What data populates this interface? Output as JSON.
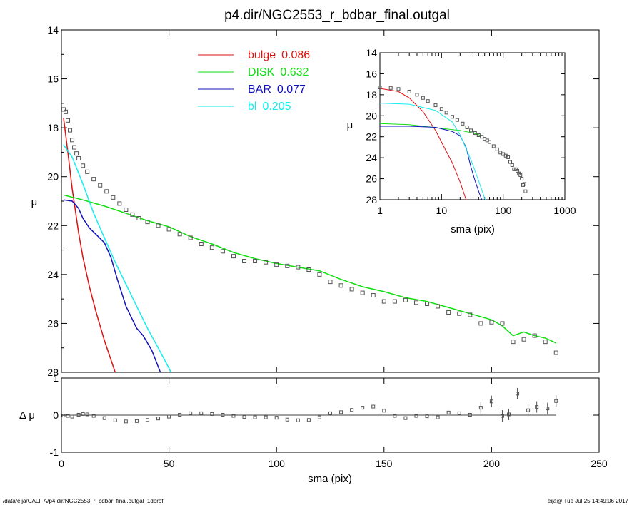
{
  "title": "p4.dir/NGC2553_r_bdbar_final.outgal",
  "footer_left": "/data/eija/CALIFA/p4.dir/NGC2553_r_bdbar_final.outgal_1dprof",
  "footer_right": "eija@  Tue Jul 25 14:49:06 2017",
  "colors": {
    "bulge": "#dd1111",
    "disk": "#11dd11",
    "bar": "#1111bb",
    "bl": "#11eeee",
    "data": "#555555"
  },
  "legend": [
    {
      "key": "bulge",
      "label": "bulge",
      "value": "0.086"
    },
    {
      "key": "disk",
      "label": "DISK",
      "value": "0.632"
    },
    {
      "key": "bar",
      "label": "BAR",
      "value": "0.077"
    },
    {
      "key": "bl",
      "label": "bl",
      "value": "0.205"
    }
  ],
  "chart_data": [
    {
      "panel": "main",
      "type": "line",
      "title": "p4.dir/NGC2553_r_bdbar_final.outgal",
      "xlabel": "sma (pix)",
      "ylabel": "μ",
      "xlim": [
        0,
        250
      ],
      "ylim": [
        28,
        14
      ],
      "y_inverted": true,
      "xticks": [
        0,
        50,
        100,
        150,
        200,
        250
      ],
      "yticks": [
        14,
        16,
        18,
        20,
        22,
        24,
        26,
        28
      ],
      "series": [
        {
          "name": "bulge",
          "key": "bulge",
          "style": "line",
          "points": [
            [
              1,
              17.6
            ],
            [
              3,
              19.0
            ],
            [
              5,
              20.5
            ],
            [
              8,
              22.3
            ],
            [
              10,
              23.3
            ],
            [
              13,
              24.5
            ],
            [
              16,
              25.5
            ],
            [
              20,
              26.7
            ],
            [
              25,
              28.0
            ]
          ]
        },
        {
          "name": "DISK",
          "key": "disk",
          "style": "line",
          "points": [
            [
              1,
              20.75
            ],
            [
              10,
              20.95
            ],
            [
              20,
              21.2
            ],
            [
              30,
              21.5
            ],
            [
              40,
              21.8
            ],
            [
              50,
              22.05
            ],
            [
              60,
              22.45
            ],
            [
              70,
              22.75
            ],
            [
              80,
              23.1
            ],
            [
              90,
              23.35
            ],
            [
              100,
              23.55
            ],
            [
              110,
              23.7
            ],
            [
              120,
              23.85
            ],
            [
              130,
              24.2
            ],
            [
              140,
              24.5
            ],
            [
              150,
              24.7
            ],
            [
              160,
              24.95
            ],
            [
              170,
              25.1
            ],
            [
              180,
              25.35
            ],
            [
              190,
              25.6
            ],
            [
              200,
              25.85
            ],
            [
              205,
              26.1
            ],
            [
              210,
              26.5
            ],
            [
              215,
              26.35
            ],
            [
              220,
              26.5
            ],
            [
              225,
              26.6
            ],
            [
              230,
              26.8
            ]
          ]
        },
        {
          "name": "BAR",
          "key": "bar",
          "style": "line",
          "points": [
            [
              1,
              20.95
            ],
            [
              5,
              21.0
            ],
            [
              8,
              21.3
            ],
            [
              10,
              21.7
            ],
            [
              13,
              22.1
            ],
            [
              16,
              22.35
            ],
            [
              20,
              22.7
            ],
            [
              23,
              23.3
            ],
            [
              26,
              24.2
            ],
            [
              30,
              25.3
            ],
            [
              35,
              26.2
            ],
            [
              38,
              26.5
            ],
            [
              42,
              27.1
            ],
            [
              46,
              28.0
            ]
          ]
        },
        {
          "name": "bl",
          "key": "bl",
          "style": "line",
          "points": [
            [
              1,
              18.7
            ],
            [
              5,
              19.2
            ],
            [
              10,
              20.3
            ],
            [
              15,
              21.5
            ],
            [
              20,
              22.5
            ],
            [
              25,
              23.5
            ],
            [
              30,
              24.4
            ],
            [
              35,
              25.3
            ],
            [
              40,
              26.2
            ],
            [
              45,
              27.0
            ],
            [
              51,
              28.0
            ]
          ]
        },
        {
          "name": "data",
          "key": "data",
          "style": "points",
          "points": [
            [
              1,
              17.25
            ],
            [
              2,
              17.35
            ],
            [
              3,
              17.7
            ],
            [
              4,
              18.1
            ],
            [
              5,
              18.5
            ],
            [
              6,
              18.8
            ],
            [
              7,
              19.05
            ],
            [
              8,
              19.25
            ],
            [
              10,
              19.55
            ],
            [
              12,
              19.8
            ],
            [
              15,
              20.1
            ],
            [
              18,
              20.35
            ],
            [
              21,
              20.6
            ],
            [
              24,
              20.85
            ],
            [
              27,
              21.1
            ],
            [
              30,
              21.35
            ],
            [
              33,
              21.55
            ],
            [
              36,
              21.7
            ],
            [
              40,
              21.85
            ],
            [
              45,
              22.0
            ],
            [
              50,
              22.15
            ],
            [
              55,
              22.35
            ],
            [
              60,
              22.5
            ],
            [
              65,
              22.75
            ],
            [
              70,
              22.9
            ],
            [
              75,
              23.05
            ],
            [
              80,
              23.25
            ],
            [
              85,
              23.45
            ],
            [
              90,
              23.45
            ],
            [
              95,
              23.5
            ],
            [
              100,
              23.6
            ],
            [
              105,
              23.65
            ],
            [
              110,
              23.7
            ],
            [
              115,
              23.8
            ],
            [
              120,
              24.0
            ],
            [
              125,
              24.3
            ],
            [
              130,
              24.45
            ],
            [
              135,
              24.6
            ],
            [
              140,
              24.75
            ],
            [
              145,
              24.85
            ],
            [
              150,
              25.1
            ],
            [
              155,
              25.1
            ],
            [
              160,
              25.05
            ],
            [
              165,
              25.15
            ],
            [
              170,
              25.2
            ],
            [
              175,
              25.3
            ],
            [
              180,
              25.55
            ],
            [
              185,
              25.6
            ],
            [
              190,
              25.65
            ],
            [
              195,
              26.0
            ],
            [
              200,
              25.95
            ],
            [
              205,
              26.0
            ],
            [
              210,
              26.75
            ],
            [
              215,
              26.65
            ],
            [
              220,
              26.5
            ],
            [
              225,
              26.75
            ],
            [
              230,
              27.2
            ]
          ]
        }
      ]
    },
    {
      "panel": "residual",
      "type": "scatter",
      "xlabel": "sma (pix)",
      "ylabel": "Δ μ",
      "xlim": [
        0,
        250
      ],
      "ylim": [
        -1,
        1
      ],
      "xticks": [
        0,
        50,
        100,
        150,
        200,
        250
      ],
      "yticks": [
        -1,
        0,
        1
      ],
      "reference_line": 0,
      "points": [
        [
          1,
          -0.01
        ],
        [
          3,
          -0.02
        ],
        [
          5,
          -0.04
        ],
        [
          8,
          0.01
        ],
        [
          10,
          0.03
        ],
        [
          12,
          0.02
        ],
        [
          15,
          -0.02
        ],
        [
          20,
          -0.08
        ],
        [
          25,
          -0.14
        ],
        [
          30,
          -0.17
        ],
        [
          35,
          -0.16
        ],
        [
          40,
          -0.13
        ],
        [
          45,
          -0.09
        ],
        [
          50,
          -0.04
        ],
        [
          55,
          0.01
        ],
        [
          60,
          0.05
        ],
        [
          65,
          0.05
        ],
        [
          70,
          0.03
        ],
        [
          75,
          0.01
        ],
        [
          80,
          -0.02
        ],
        [
          85,
          -0.05
        ],
        [
          90,
          -0.06
        ],
        [
          95,
          -0.06
        ],
        [
          100,
          -0.07
        ],
        [
          105,
          -0.12
        ],
        [
          110,
          -0.14
        ],
        [
          115,
          -0.13
        ],
        [
          120,
          -0.06
        ],
        [
          125,
          0.05
        ],
        [
          130,
          0.08
        ],
        [
          135,
          0.14
        ],
        [
          140,
          0.2
        ],
        [
          145,
          0.23
        ],
        [
          150,
          0.12
        ],
        [
          155,
          -0.02
        ],
        [
          160,
          -0.08
        ],
        [
          165,
          -0.02
        ],
        [
          170,
          -0.03
        ],
        [
          175,
          -0.06
        ],
        [
          180,
          0.07
        ],
        [
          185,
          0.05
        ],
        [
          190,
          0.01
        ],
        [
          195,
          0.2
        ],
        [
          200,
          0.37
        ],
        [
          205,
          -0.02
        ],
        [
          208,
          0.02
        ],
        [
          212,
          0.58
        ],
        [
          217,
          0.13
        ],
        [
          221,
          0.22
        ],
        [
          226,
          0.18
        ],
        [
          230,
          0.38
        ]
      ]
    },
    {
      "panel": "inset",
      "type": "line",
      "xlabel": "sma (pix)",
      "ylabel": "μ",
      "x_scale": "log",
      "xlim": [
        1,
        1000
      ],
      "ylim": [
        28,
        14
      ],
      "y_inverted": true,
      "xtick_labels": [
        "1",
        "10",
        "100",
        "1000"
      ],
      "ytick_labels": [
        "14",
        "16",
        "18",
        "20",
        "22",
        "24",
        "26",
        "28"
      ],
      "series": [
        {
          "name": "bulge",
          "key": "bulge",
          "style": "line",
          "points": [
            [
              1,
              17.4
            ],
            [
              2,
              17.7
            ],
            [
              3,
              18.3
            ],
            [
              5,
              19.6
            ],
            [
              8,
              21.4
            ],
            [
              10,
              22.5
            ],
            [
              15,
              24.5
            ],
            [
              20,
              26.3
            ],
            [
              25,
              28.0
            ]
          ]
        },
        {
          "name": "DISK",
          "key": "disk",
          "style": "line",
          "points": [
            [
              1,
              20.75
            ],
            [
              3,
              20.85
            ],
            [
              10,
              21.2
            ],
            [
              20,
              21.4
            ],
            [
              30,
              21.6
            ],
            [
              45,
              21.9
            ]
          ]
        },
        {
          "name": "BAR",
          "key": "bar",
          "style": "line",
          "points": [
            [
              1,
              21.0
            ],
            [
              3,
              21.0
            ],
            [
              8,
              21.1
            ],
            [
              15,
              21.5
            ],
            [
              20,
              21.9
            ],
            [
              25,
              23.0
            ],
            [
              30,
              24.9
            ],
            [
              35,
              26.2
            ],
            [
              40,
              27.2
            ],
            [
              45,
              28.0
            ]
          ]
        },
        {
          "name": "bl",
          "key": "bl",
          "style": "line",
          "points": [
            [
              1,
              18.8
            ],
            [
              3,
              18.9
            ],
            [
              8,
              19.5
            ],
            [
              15,
              20.6
            ],
            [
              20,
              21.8
            ],
            [
              30,
              24.2
            ],
            [
              40,
              26.2
            ],
            [
              51,
              28.0
            ]
          ]
        },
        {
          "name": "data",
          "key": "data",
          "style": "points",
          "points": [
            [
              1,
              17.3
            ],
            [
              1.5,
              17.35
            ],
            [
              2,
              17.45
            ],
            [
              3,
              17.7
            ],
            [
              4,
              18.0
            ],
            [
              5,
              18.3
            ],
            [
              6,
              18.6
            ],
            [
              8,
              19.0
            ],
            [
              10,
              19.35
            ],
            [
              12,
              19.7
            ],
            [
              15,
              20.1
            ],
            [
              18,
              20.4
            ],
            [
              22,
              20.75
            ],
            [
              26,
              21.1
            ],
            [
              30,
              21.4
            ],
            [
              35,
              21.65
            ],
            [
              40,
              21.85
            ],
            [
              45,
              22.0
            ],
            [
              50,
              22.2
            ],
            [
              55,
              22.35
            ],
            [
              60,
              22.5
            ],
            [
              70,
              22.9
            ],
            [
              80,
              23.2
            ],
            [
              90,
              23.5
            ],
            [
              100,
              23.65
            ],
            [
              110,
              23.8
            ],
            [
              120,
              23.95
            ],
            [
              130,
              24.4
            ],
            [
              140,
              24.7
            ],
            [
              150,
              25.1
            ],
            [
              160,
              25.1
            ],
            [
              170,
              25.25
            ],
            [
              180,
              25.5
            ],
            [
              190,
              25.65
            ],
            [
              200,
              26.0
            ],
            [
              210,
              26.6
            ],
            [
              220,
              26.5
            ],
            [
              230,
              27.2
            ]
          ]
        }
      ]
    }
  ]
}
